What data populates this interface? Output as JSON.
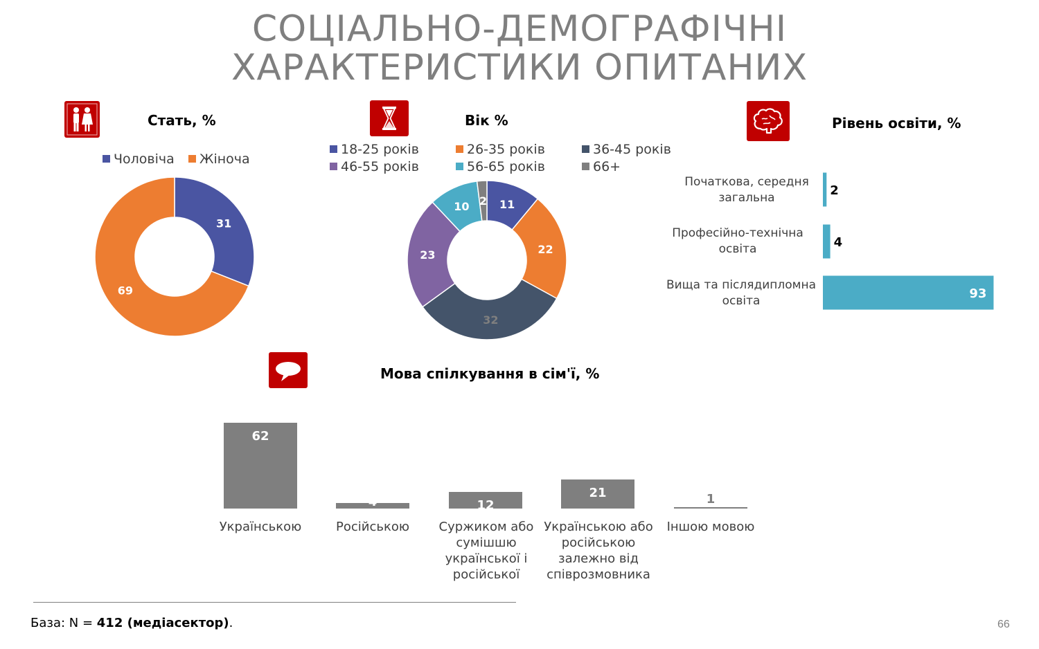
{
  "title": {
    "line1": "СОЦІАЛЬНО-ДЕМОГРАФІЧНІ",
    "line2": "ХАРАКТЕРИСТИКИ ОПИТАНИХ"
  },
  "icons": {
    "gender": "people-icon",
    "age": "hourglass-icon",
    "education": "brain-icon",
    "language": "speech-bubble-icon"
  },
  "colors": {
    "icon_bg": "#c00000",
    "male": "#4a55a2",
    "female": "#ed7d31",
    "age_18_25": "#4a55a2",
    "age_26_35": "#ed7d31",
    "age_36_45": "#44546a",
    "age_46_55": "#8064a2",
    "age_56_65": "#4bacc6",
    "age_66": "#7f7f7f",
    "education_bar": "#4bacc6",
    "language_bar": "#7f7f7f"
  },
  "chart_data": [
    {
      "id": "gender",
      "type": "pie",
      "title": "Стать, %",
      "legend_position": "top",
      "categories": [
        "Чоловіча",
        "Жіноча"
      ],
      "values": [
        31,
        69
      ]
    },
    {
      "id": "age",
      "type": "pie",
      "title": "Вік %",
      "legend_position": "top",
      "categories": [
        "18-25 років",
        "26-35 років",
        "36-45 років",
        "46-55 років",
        "56-65 років",
        "66+"
      ],
      "values": [
        11,
        22,
        32,
        23,
        10,
        2
      ]
    },
    {
      "id": "education",
      "type": "bar",
      "orientation": "horizontal",
      "title": "Рівень освіти, %",
      "categories": [
        "Початкова, середня загальна",
        "Професійно-технічна освіта",
        "Вища та післядипломна освіта"
      ],
      "values": [
        2,
        4,
        93
      ],
      "xlim": [
        0,
        100
      ]
    },
    {
      "id": "language",
      "type": "bar",
      "orientation": "vertical",
      "title": "Мова спілкування в сім'ї, %",
      "categories": [
        "Українською",
        "Російською",
        "Суржиком або сумішшю української і російської",
        "Українською або російською залежно від співрозмовника",
        "Іншою мовою"
      ],
      "values": [
        62,
        4,
        12,
        21,
        1
      ],
      "ylim": [
        0,
        62
      ]
    }
  ],
  "footer": {
    "base_prefix": "База: N = ",
    "base_bold": "412 (медіасектор)",
    "base_suffix": "."
  },
  "page_number": "66"
}
